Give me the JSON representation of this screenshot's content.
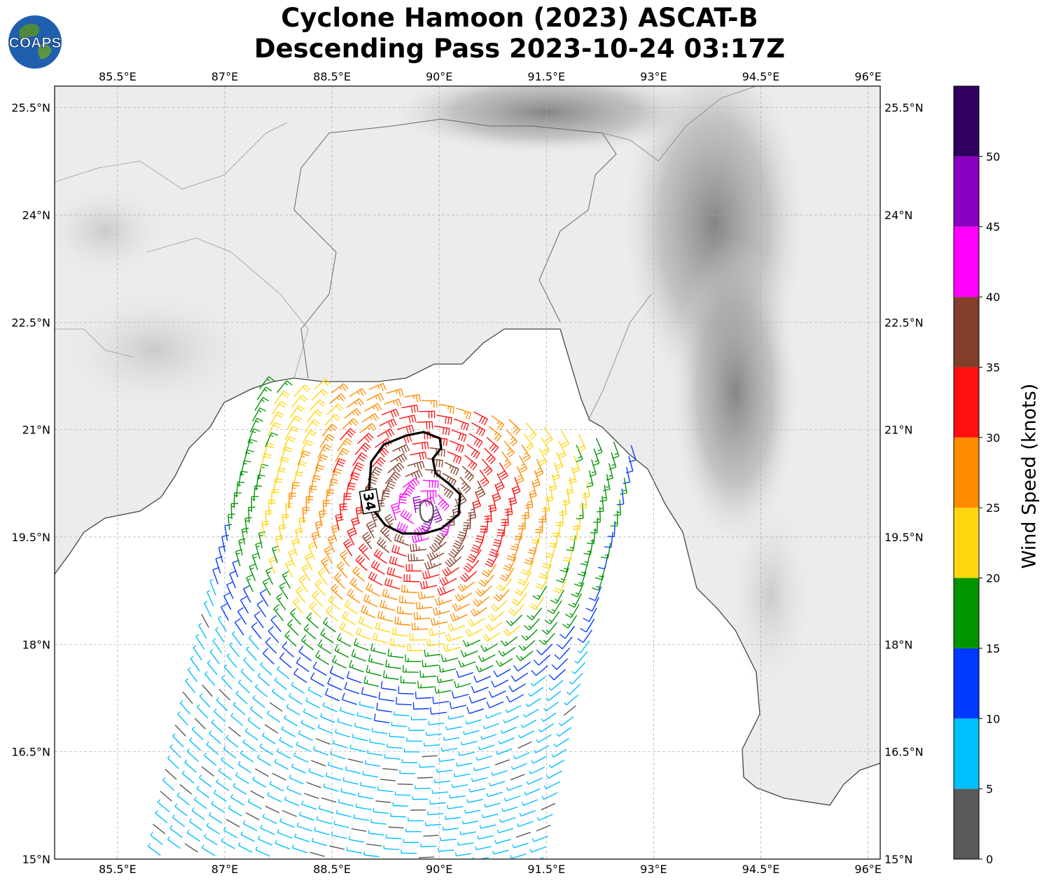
{
  "title": {
    "line1": "Cyclone Hamoon (2023) ASCAT-B",
    "line2": "Descending Pass 2023-10-24 03:17Z"
  },
  "logo": {
    "text": "COAPS",
    "icon": "globe-logo-icon"
  },
  "map": {
    "lon_range": [
      84.62,
      96.17
    ],
    "lat_range": [
      15.0,
      25.8
    ],
    "lon_ticks": [
      "85.5°E",
      "87°E",
      "88.5°E",
      "90°E",
      "91.5°E",
      "93°E",
      "94.5°E",
      "96°E"
    ],
    "lon_tick_values": [
      85.5,
      87,
      88.5,
      90,
      91.5,
      93,
      94.5,
      96
    ],
    "lat_ticks": [
      "15°N",
      "16.5°N",
      "18°N",
      "19.5°N",
      "21°N",
      "22.5°N",
      "24°N",
      "25.5°N"
    ],
    "lat_tick_values": [
      15,
      16.5,
      18,
      19.5,
      21,
      22.5,
      24,
      25.5
    ],
    "grid": true,
    "storm_center": {
      "lon": 89.75,
      "lat": 19.85
    },
    "contour_label": "34"
  },
  "colorbar": {
    "label": "Wind Speed (knots)",
    "ticks": [
      "0",
      "5",
      "10",
      "15",
      "20",
      "25",
      "30",
      "35",
      "40",
      "45",
      "50"
    ],
    "bins": [
      {
        "from": 0,
        "to": 5,
        "color": "#595959"
      },
      {
        "from": 5,
        "to": 10,
        "color": "#00bfff"
      },
      {
        "from": 10,
        "to": 15,
        "color": "#0038ff"
      },
      {
        "from": 15,
        "to": 20,
        "color": "#009500"
      },
      {
        "from": 20,
        "to": 25,
        "color": "#ffd60f"
      },
      {
        "from": 25,
        "to": 30,
        "color": "#ff8c00"
      },
      {
        "from": 30,
        "to": 35,
        "color": "#ff1010"
      },
      {
        "from": 35,
        "to": 40,
        "color": "#833e2b"
      },
      {
        "from": 40,
        "to": 45,
        "color": "#ff00ff"
      },
      {
        "from": 45,
        "to": 50,
        "color": "#8a00c0"
      },
      {
        "from": 50,
        "to": 55,
        "color": "#300060"
      }
    ]
  }
}
